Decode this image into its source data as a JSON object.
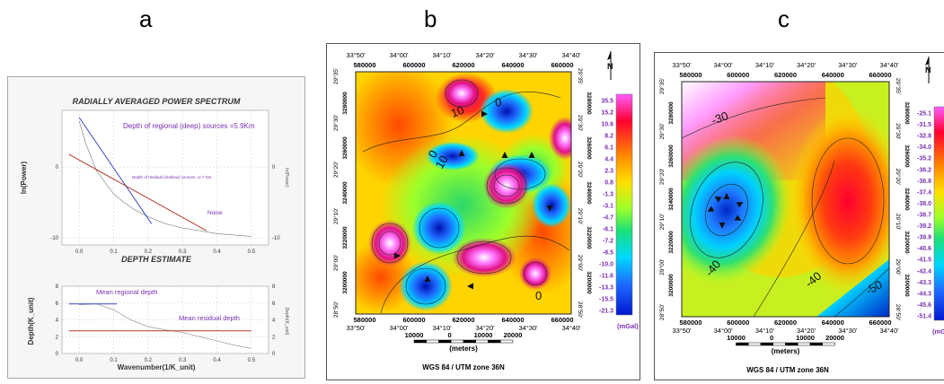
{
  "panel_labels": {
    "a": "a",
    "b": "b",
    "c": "c"
  },
  "chart_data": [
    {
      "type": "line",
      "title": "RADIALLY AVERAGED POWER SPECTRUM",
      "ylabel": "ln(Power)",
      "ylabel_right": "ln(Power)",
      "xlim": [
        -0.05,
        0.55
      ],
      "ylim": [
        -11,
        8
      ],
      "x_ticks": [
        "0.0",
        "0.1",
        "0.2",
        "0.3",
        "0.4",
        "0.5"
      ],
      "y_ticks": [
        "0",
        "-10"
      ],
      "series": [
        {
          "x": [
            0.0,
            0.02,
            0.05,
            0.08,
            0.1,
            0.13,
            0.16,
            0.2,
            0.25,
            0.3,
            0.35,
            0.4,
            0.45,
            0.5
          ],
          "y": [
            6.5,
            3.2,
            -0.5,
            -2.5,
            -3.8,
            -5.0,
            -6.0,
            -7.0,
            -8.0,
            -8.6,
            -9.0,
            -9.4,
            -9.6,
            -9.8
          ]
        },
        {
          "x": [
            0.0,
            0.21
          ],
          "y": [
            7.0,
            -8.0
          ]
        },
        {
          "x": [
            -0.03,
            0.37
          ],
          "y": [
            1.8,
            -9.0
          ]
        }
      ],
      "annotations": [
        "Depth of regional (deep) sources =5.9Km",
        "Depth of residual (shallow) sources =2.7 Km",
        "Noise"
      ]
    },
    {
      "type": "line",
      "title": "DEPTH ESTIMATE",
      "xlabel": "Wavenumber(1/K_unit)",
      "ylabel": "Depth(K_unit)",
      "ylabel_right": "Depth(K_unit)",
      "xlim": [
        -0.05,
        0.55
      ],
      "ylim": [
        0,
        8
      ],
      "x_ticks": [
        "0.0",
        "0.1",
        "0.2",
        "0.3",
        "0.4",
        "0.5"
      ],
      "y_ticks": [
        "8",
        "6",
        "4",
        "2",
        "0"
      ],
      "series": [
        {
          "x": [
            0.0,
            0.05,
            0.1,
            0.15,
            0.2,
            0.25,
            0.3,
            0.35,
            0.4,
            0.45,
            0.5
          ],
          "y": [
            5.8,
            5.9,
            5.2,
            4.0,
            3.2,
            2.8,
            2.5,
            2.0,
            1.5,
            1.0,
            0.6
          ]
        },
        {
          "x": [
            -0.03,
            0.11
          ],
          "y": [
            5.9,
            5.9
          ]
        },
        {
          "x": [
            -0.03,
            0.5
          ],
          "y": [
            2.7,
            2.7
          ]
        }
      ],
      "annotations": [
        "Mean regional depth",
        "Mean residual depth"
      ]
    },
    {
      "type": "heatmap",
      "x_ticks_top_deg": [
        "33°50'",
        "34°00'",
        "34°10'",
        "34°20'",
        "34°30'",
        "34°40'"
      ],
      "x_ticks_top_m": [
        "580000",
        "600000",
        "620000",
        "640000",
        "660000"
      ],
      "x_ticks_bottom_m": [
        "580000",
        "600000",
        "620000",
        "640000",
        "660000"
      ],
      "x_ticks_bottom_deg": [
        "33°50'",
        "34°00'",
        "34°10'",
        "34°20'",
        "34°30'",
        "34°40'"
      ],
      "y_ticks_left_deg": [
        "29°35'",
        "29°30'",
        "29°20'",
        "29°10'",
        "29°00'",
        "28°50'"
      ],
      "y_ticks_left_m": [
        "3280000",
        "3260000",
        "3240000",
        "3220000",
        "3200000"
      ],
      "y_ticks_right_deg": [
        "29°35'",
        "29°30'",
        "29°20'",
        "29°10'",
        "29°00'",
        "28°50'"
      ],
      "y_ticks_right_m": [
        "3280000",
        "3260000",
        "3240000",
        "3220000",
        "3200000"
      ],
      "contour_labels": [
        "10",
        "0",
        "0",
        "10",
        "0"
      ],
      "colorbar": [
        "35.5",
        "15.2",
        "10.6",
        "8.2",
        "6.1",
        "4.4",
        "2.3",
        "0.8",
        "-1.3",
        "-3.1",
        "-4.7",
        "-6.1",
        "-7.2",
        "-8.5",
        "-10.0",
        "-11.6",
        "-13.3",
        "-15.5",
        "-21.3"
      ],
      "colorbar_unit": "(mGal)",
      "scale_labels": [
        "10000",
        "0",
        "10000",
        "20000"
      ],
      "scale_unit": "(meters)",
      "projection": "WGS 84 / UTM zone 36N",
      "north": "N"
    },
    {
      "type": "heatmap",
      "x_ticks_top_deg": [
        "33°50'",
        "34°00'",
        "34°10'",
        "34°20'",
        "34°30'",
        "34°40'"
      ],
      "x_ticks_top_m": [
        "580000",
        "600000",
        "620000",
        "640000",
        "660000"
      ],
      "x_ticks_bottom_m": [
        "580000",
        "600000",
        "620000",
        "640000",
        "660000"
      ],
      "x_ticks_bottom_deg": [
        "33°50'",
        "34°00'",
        "34°10'",
        "34°20'",
        "34°30'",
        "34°40'"
      ],
      "y_ticks_left_deg": [
        "29°35'",
        "29°30'",
        "29°20'",
        "29°10'",
        "29°00'",
        "28°50'"
      ],
      "y_ticks_left_m": [
        "3280000",
        "3260000",
        "3240000",
        "3220000",
        "3200000"
      ],
      "y_ticks_right_deg": [
        "29°35'",
        "29°30'",
        "29°20'",
        "29°10'",
        "29°00'",
        "28°50'"
      ],
      "y_ticks_right_m": [
        "3280000",
        "3260000",
        "3240000",
        "3220000",
        "3200000"
      ],
      "contour_labels": [
        "-30",
        "-40",
        "-40",
        "-50"
      ],
      "colorbar": [
        "-25.1",
        "-31.5",
        "-32.8",
        "-34.0",
        "-35.2",
        "-36.2",
        "-36.8",
        "-37.4",
        "-38.0",
        "-38.7",
        "-39.2",
        "-39.9",
        "-40.6",
        "-41.5",
        "-42.4",
        "-43.3",
        "-44.3",
        "-45.6",
        "-51.4"
      ],
      "colorbar_unit": "(mGal)",
      "scale_labels": [
        "10000",
        "0",
        "10000",
        "20000"
      ],
      "scale_unit": "(meters)",
      "projection": "WGS 84 / UTM zone 36N",
      "north": "N"
    }
  ]
}
